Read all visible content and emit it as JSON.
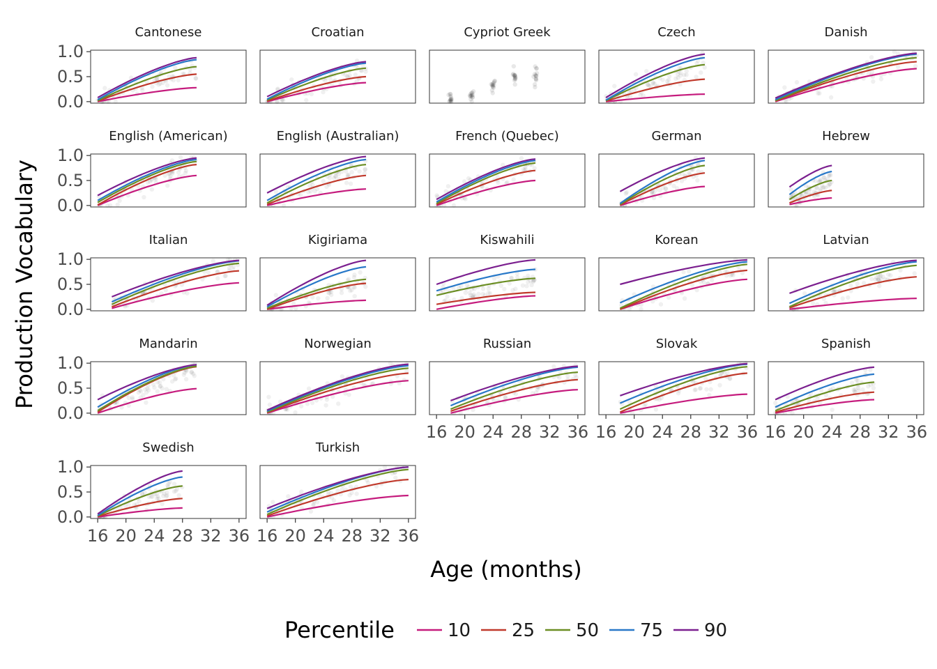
{
  "chart_data": {
    "type": "line",
    "xlabel": "Age (months)",
    "ylabel": "Production Vocabulary",
    "xlim": [
      15,
      37
    ],
    "ylim": [
      -0.03,
      1.03
    ],
    "x_ticks": [
      16,
      20,
      24,
      28,
      32,
      36
    ],
    "y_ticks": [
      0.0,
      0.5,
      1.0
    ],
    "y_tick_labels": [
      "0.0",
      "0.5",
      "1.0"
    ],
    "grid": false,
    "legend": {
      "title": "Percentile",
      "position": "bottom",
      "entries": [
        {
          "label": "10",
          "color": "#c51b7d"
        },
        {
          "label": "25",
          "color": "#c0392b"
        },
        {
          "label": "50",
          "color": "#6b8e23"
        },
        {
          "label": "75",
          "color": "#2878c8"
        },
        {
          "label": "90",
          "color": "#7b1f8f"
        }
      ]
    },
    "percentiles": [
      "10",
      "25",
      "50",
      "75",
      "90"
    ],
    "panels": [
      {
        "name": "Cantonese",
        "xr": [
          16,
          30
        ],
        "series": [
          [
            0.0,
            0.28
          ],
          [
            0.01,
            0.55
          ],
          [
            0.02,
            0.7
          ],
          [
            0.04,
            0.84
          ],
          [
            0.08,
            0.88
          ]
        ]
      },
      {
        "name": "Croatian",
        "xr": [
          16,
          30
        ],
        "series": [
          [
            0.0,
            0.38
          ],
          [
            0.01,
            0.5
          ],
          [
            0.03,
            0.67
          ],
          [
            0.05,
            0.77
          ],
          [
            0.1,
            0.8
          ]
        ]
      },
      {
        "name": "Cypriot Greek",
        "xr": null,
        "series": [],
        "dots_only": true
      },
      {
        "name": "Czech",
        "xr": [
          16,
          30
        ],
        "series": [
          [
            0.0,
            0.15
          ],
          [
            0.01,
            0.45
          ],
          [
            0.02,
            0.74
          ],
          [
            0.03,
            0.88
          ],
          [
            0.08,
            0.95
          ]
        ]
      },
      {
        "name": "Danish",
        "xr": [
          16,
          36
        ],
        "series": [
          [
            0.0,
            0.66
          ],
          [
            0.01,
            0.8
          ],
          [
            0.02,
            0.88
          ],
          [
            0.04,
            0.95
          ],
          [
            0.07,
            0.97
          ]
        ]
      },
      {
        "name": "English (American)",
        "xr": [
          16,
          30
        ],
        "series": [
          [
            0.0,
            0.6
          ],
          [
            0.01,
            0.82
          ],
          [
            0.06,
            0.88
          ],
          [
            0.1,
            0.92
          ],
          [
            0.2,
            0.95
          ]
        ]
      },
      {
        "name": "English (Australian)",
        "xr": [
          16,
          30
        ],
        "series": [
          [
            0.0,
            0.33
          ],
          [
            0.02,
            0.6
          ],
          [
            0.05,
            0.82
          ],
          [
            0.1,
            0.92
          ],
          [
            0.25,
            0.98
          ]
        ]
      },
      {
        "name": "French (Quebec)",
        "xr": [
          16,
          30
        ],
        "series": [
          [
            0.0,
            0.5
          ],
          [
            0.02,
            0.7
          ],
          [
            0.04,
            0.85
          ],
          [
            0.07,
            0.9
          ],
          [
            0.12,
            0.93
          ]
        ]
      },
      {
        "name": "German",
        "xr": [
          18,
          30
        ],
        "series": [
          [
            0.0,
            0.38
          ],
          [
            0.01,
            0.65
          ],
          [
            0.02,
            0.8
          ],
          [
            0.04,
            0.9
          ],
          [
            0.28,
            0.95
          ]
        ]
      },
      {
        "name": "Hebrew",
        "xr": [
          18,
          24
        ],
        "series": [
          [
            0.02,
            0.15
          ],
          [
            0.05,
            0.3
          ],
          [
            0.12,
            0.5
          ],
          [
            0.22,
            0.68
          ],
          [
            0.37,
            0.8
          ]
        ]
      },
      {
        "name": "Italian",
        "xr": [
          18,
          36
        ],
        "series": [
          [
            0.02,
            0.53
          ],
          [
            0.05,
            0.77
          ],
          [
            0.1,
            0.92
          ],
          [
            0.15,
            0.97
          ],
          [
            0.25,
            0.98
          ]
        ]
      },
      {
        "name": "Kigiriama",
        "xr": [
          16,
          30
        ],
        "series": [
          [
            0.0,
            0.18
          ],
          [
            0.0,
            0.52
          ],
          [
            0.02,
            0.6
          ],
          [
            0.05,
            0.85
          ],
          [
            0.08,
            0.98
          ]
        ]
      },
      {
        "name": "Kiswahili",
        "xr": [
          16,
          30
        ],
        "series": [
          [
            0.0,
            0.27
          ],
          [
            0.1,
            0.34
          ],
          [
            0.28,
            0.62
          ],
          [
            0.37,
            0.8
          ],
          [
            0.5,
            0.99
          ]
        ]
      },
      {
        "name": "Korean",
        "xr": [
          18,
          36
        ],
        "series": [
          [
            0.0,
            0.6
          ],
          [
            0.0,
            0.78
          ],
          [
            0.02,
            0.9
          ],
          [
            0.13,
            0.95
          ],
          [
            0.5,
            0.99
          ]
        ]
      },
      {
        "name": "Latvian",
        "xr": [
          18,
          36
        ],
        "series": [
          [
            0.0,
            0.22
          ],
          [
            0.03,
            0.65
          ],
          [
            0.05,
            0.88
          ],
          [
            0.12,
            0.95
          ],
          [
            0.32,
            0.98
          ]
        ]
      },
      {
        "name": "Mandarin",
        "xr": [
          16,
          30
        ],
        "series": [
          [
            0.0,
            0.49
          ],
          [
            0.02,
            0.93
          ],
          [
            0.05,
            0.94
          ],
          [
            0.12,
            0.97
          ],
          [
            0.27,
            0.97
          ]
        ]
      },
      {
        "name": "Norwegian",
        "xr": [
          16,
          36
        ],
        "series": [
          [
            0.0,
            0.65
          ],
          [
            0.01,
            0.8
          ],
          [
            0.02,
            0.9
          ],
          [
            0.04,
            0.95
          ],
          [
            0.06,
            0.98
          ]
        ]
      },
      {
        "name": "Russian",
        "xr": [
          18,
          36
        ],
        "series": [
          [
            0.0,
            0.47
          ],
          [
            0.04,
            0.67
          ],
          [
            0.08,
            0.82
          ],
          [
            0.15,
            0.92
          ],
          [
            0.25,
            0.94
          ]
        ]
      },
      {
        "name": "Slovak",
        "xr": [
          18,
          36
        ],
        "series": [
          [
            0.0,
            0.38
          ],
          [
            0.02,
            0.8
          ],
          [
            0.08,
            0.93
          ],
          [
            0.2,
            0.98
          ],
          [
            0.35,
            0.99
          ]
        ]
      },
      {
        "name": "Spanish",
        "xr": [
          16,
          30
        ],
        "series": [
          [
            0.0,
            0.27
          ],
          [
            0.02,
            0.42
          ],
          [
            0.05,
            0.62
          ],
          [
            0.12,
            0.78
          ],
          [
            0.27,
            0.92
          ]
        ]
      },
      {
        "name": "Swedish",
        "xr": [
          16,
          28
        ],
        "series": [
          [
            0.0,
            0.18
          ],
          [
            0.01,
            0.37
          ],
          [
            0.02,
            0.62
          ],
          [
            0.03,
            0.8
          ],
          [
            0.06,
            0.92
          ]
        ]
      },
      {
        "name": "Turkish",
        "xr": [
          16,
          36
        ],
        "series": [
          [
            0.0,
            0.43
          ],
          [
            0.02,
            0.75
          ],
          [
            0.05,
            0.95
          ],
          [
            0.1,
            1.0
          ],
          [
            0.17,
            1.0
          ]
        ]
      }
    ]
  }
}
